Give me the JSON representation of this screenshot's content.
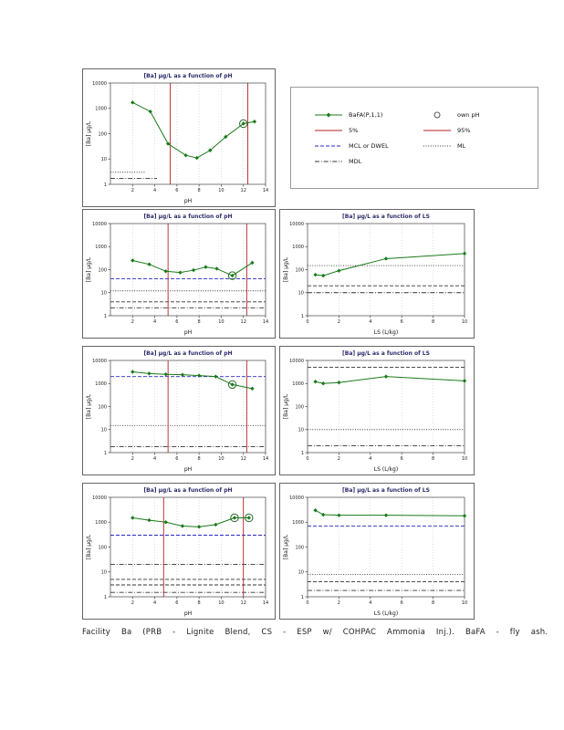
{
  "page": {
    "caption": "Facility Ba (PRB - Lignite Blend, CS - ESP w/ COHPAC Ammonia Inj.). BaFA - fly ash."
  },
  "colors": {
    "series_green": "#1a7a1a",
    "percentile_red": "#b22222",
    "mcl_blue": "#2929c8",
    "line_black": "#333333"
  },
  "legend": {
    "entries": [
      {
        "label": "BaFA(P,1,1)",
        "swatch": "line-marker",
        "color": "#1a7a1a",
        "dash": "solid"
      },
      {
        "label": "own pH",
        "swatch": "circle",
        "color": "#555555",
        "dash": "solid"
      },
      {
        "label": "5%",
        "swatch": "line",
        "color": "#b22222",
        "dash": "solid"
      },
      {
        "label": "95%",
        "swatch": "line",
        "color": "#b22222",
        "dash": "solid"
      },
      {
        "label": "MCL or DWEL",
        "swatch": "line",
        "color": "#2929c8",
        "dash": "dashed"
      },
      {
        "label": "ML",
        "swatch": "line",
        "color": "#333333",
        "dash": "dotted"
      },
      {
        "label": "MDL",
        "swatch": "line",
        "color": "#333333",
        "dash": "dashdot"
      }
    ]
  },
  "chart_data": [
    {
      "type": "line",
      "title": "[Ba] µg/L as a function of pH",
      "xlabel": "pH",
      "ylabel": "[Ba] µg/L",
      "xlim": [
        0,
        14
      ],
      "xticks": [
        2,
        4,
        6,
        8,
        10,
        12,
        14
      ],
      "ylog": true,
      "ylim": [
        1,
        10000
      ],
      "yticks": [
        1,
        10,
        100,
        1000,
        10000
      ],
      "grid": true,
      "legend_position": "none",
      "series": [
        {
          "name": "BaFA(P,1,1)",
          "x": [
            2,
            3.6,
            5.2,
            6.8,
            7.8,
            9,
            10.4,
            12,
            13
          ],
          "y": [
            1700,
            750,
            40,
            14,
            11,
            22,
            75,
            250,
            300
          ]
        }
      ],
      "circled": [
        7
      ],
      "vlines": [
        {
          "x": 5.4,
          "color": "#b22222"
        },
        {
          "x": 12.4,
          "color": "#b22222"
        }
      ],
      "hlines": [
        {
          "y": 3,
          "dash": "dotted",
          "color": "#333333",
          "x0": 0,
          "x1": 0.22
        },
        {
          "y": 1.7,
          "dash": "dashdot",
          "color": "#333333",
          "x0": 0,
          "x1": 0.3
        }
      ]
    },
    {
      "type": "line",
      "title": "[Ba] µg/L as a function of pH",
      "xlabel": "pH",
      "ylabel": "[Ba] µg/L",
      "xlim": [
        0,
        14
      ],
      "xticks": [
        2,
        4,
        6,
        8,
        10,
        12,
        14
      ],
      "ylog": true,
      "ylim": [
        1,
        10000
      ],
      "yticks": [
        1,
        10,
        100,
        1000,
        10000
      ],
      "grid": true,
      "legend_position": "none",
      "series": [
        {
          "name": "BaFA(P,1,1)",
          "x": [
            2,
            3.5,
            5,
            6.3,
            7.5,
            8.6,
            9.6,
            11,
            12.8
          ],
          "y": [
            250,
            170,
            85,
            75,
            95,
            130,
            110,
            55,
            200
          ]
        }
      ],
      "circled": [
        7
      ],
      "vlines": [
        {
          "x": 5.2,
          "color": "#b22222"
        },
        {
          "x": 12.3,
          "color": "#b22222"
        }
      ],
      "hlines": [
        {
          "y": 40,
          "dash": "dashed",
          "color": "#2929c8"
        },
        {
          "y": 12,
          "dash": "dotted",
          "color": "#333333"
        },
        {
          "y": 4,
          "dash": "dashed",
          "color": "#333333"
        },
        {
          "y": 2.2,
          "dash": "dashdot",
          "color": "#333333"
        }
      ]
    },
    {
      "type": "line",
      "title": "[Ba] µg/L as a function of LS",
      "xlabel": "LS (L/kg)",
      "ylabel": "[Ba] µg/L",
      "xlim": [
        0,
        10
      ],
      "xticks": [
        0,
        2,
        4,
        6,
        8,
        10
      ],
      "ylog": true,
      "ylim": [
        1,
        10000
      ],
      "yticks": [
        1,
        10,
        100,
        1000,
        10000
      ],
      "grid": true,
      "legend_position": "none",
      "series": [
        {
          "name": "BaFA(P,1,1)",
          "x": [
            0.5,
            1,
            2,
            5,
            10
          ],
          "y": [
            60,
            55,
            90,
            300,
            500
          ]
        }
      ],
      "circled": [],
      "vlines": [],
      "hlines": [
        {
          "y": 150,
          "dash": "dotted",
          "color": "#333333"
        },
        {
          "y": 20,
          "dash": "dashed",
          "color": "#333333"
        },
        {
          "y": 10,
          "dash": "dashdot",
          "color": "#333333"
        }
      ]
    },
    {
      "type": "line",
      "title": "[Ba] µg/L as a function of pH",
      "xlabel": "pH",
      "ylabel": "[Ba] µg/L",
      "xlim": [
        0,
        14
      ],
      "xticks": [
        2,
        4,
        6,
        8,
        10,
        12,
        14
      ],
      "ylog": true,
      "ylim": [
        1,
        10000
      ],
      "yticks": [
        1,
        10,
        100,
        1000,
        10000
      ],
      "grid": true,
      "legend_position": "none",
      "series": [
        {
          "name": "BaFA(P,1,1)",
          "x": [
            2,
            3.5,
            5,
            6.5,
            8,
            9.5,
            11,
            12.8
          ],
          "y": [
            3200,
            2700,
            2500,
            2400,
            2200,
            2000,
            900,
            600
          ]
        }
      ],
      "circled": [
        6
      ],
      "vlines": [
        {
          "x": 5.2,
          "color": "#b22222"
        },
        {
          "x": 12.3,
          "color": "#b22222"
        }
      ],
      "hlines": [
        {
          "y": 2000,
          "dash": "dashed",
          "color": "#2929c8"
        },
        {
          "y": 15,
          "dash": "dotted",
          "color": "#333333"
        },
        {
          "y": 1.8,
          "dash": "dashdot",
          "color": "#333333"
        }
      ]
    },
    {
      "type": "line",
      "title": "[Ba] µg/L as a function of LS",
      "xlabel": "LS (L/kg)",
      "ylabel": "[Ba] µg/L",
      "xlim": [
        0,
        10
      ],
      "xticks": [
        0,
        2,
        4,
        6,
        8,
        10
      ],
      "ylog": true,
      "ylim": [
        1,
        10000
      ],
      "yticks": [
        1,
        10,
        100,
        1000,
        10000
      ],
      "grid": true,
      "legend_position": "none",
      "series": [
        {
          "name": "BaFA(P,1,1)",
          "x": [
            0.5,
            1,
            2,
            5,
            10
          ],
          "y": [
            1200,
            1000,
            1100,
            2000,
            1300
          ]
        }
      ],
      "circled": [],
      "vlines": [],
      "hlines": [
        {
          "y": 5000,
          "dash": "dashed",
          "color": "#333333"
        },
        {
          "y": 10,
          "dash": "dotted",
          "color": "#333333"
        },
        {
          "y": 2,
          "dash": "dashdot",
          "color": "#333333"
        }
      ]
    },
    {
      "type": "line",
      "title": "[Ba] µg/L as a function of pH",
      "xlabel": "pH",
      "ylabel": "[Ba] µg/L",
      "xlim": [
        0,
        14
      ],
      "xticks": [
        2,
        4,
        6,
        8,
        10,
        12,
        14
      ],
      "ylog": true,
      "ylim": [
        1,
        10000
      ],
      "yticks": [
        1,
        10,
        100,
        1000,
        10000
      ],
      "grid": true,
      "legend_position": "none",
      "series": [
        {
          "name": "BaFA(P,1,1)",
          "x": [
            2,
            3.5,
            5,
            6.5,
            8,
            9.5,
            11.2,
            12.5
          ],
          "y": [
            1500,
            1200,
            1000,
            700,
            650,
            800,
            1500,
            1500
          ]
        }
      ],
      "circled": [
        6,
        7
      ],
      "vlines": [
        {
          "x": 4.8,
          "color": "#b22222"
        },
        {
          "x": 12.0,
          "color": "#b22222"
        }
      ],
      "hlines": [
        {
          "y": 300,
          "dash": "dashed",
          "color": "#2929c8"
        },
        {
          "y": 20,
          "dash": "dashdot",
          "color": "#333333"
        },
        {
          "y": 5,
          "dash": "dashed",
          "color": "#333333"
        },
        {
          "y": 3,
          "dash": "dashed",
          "color": "#333333"
        },
        {
          "y": 1.5,
          "dash": "dashdot",
          "color": "#333333"
        }
      ]
    },
    {
      "type": "line",
      "title": "[Ba] µg/L as a function of LS",
      "xlabel": "LS (L/kg)",
      "ylabel": "[Ba] µg/L",
      "xlim": [
        0,
        10
      ],
      "xticks": [
        0,
        2,
        4,
        6,
        8,
        10
      ],
      "ylog": true,
      "ylim": [
        1,
        10000
      ],
      "yticks": [
        1,
        10,
        100,
        1000,
        10000
      ],
      "grid": true,
      "legend_position": "none",
      "series": [
        {
          "name": "BaFA(P,1,1)",
          "x": [
            0.5,
            1,
            2,
            5,
            10
          ],
          "y": [
            3000,
            2000,
            1900,
            1900,
            1800
          ]
        }
      ],
      "circled": [],
      "vlines": [],
      "hlines": [
        {
          "y": 700,
          "dash": "dashed",
          "color": "#2929c8"
        },
        {
          "y": 8,
          "dash": "dotted",
          "color": "#333333"
        },
        {
          "y": 4,
          "dash": "dashed",
          "color": "#333333"
        },
        {
          "y": 1.8,
          "dash": "dashdot",
          "color": "#333333"
        }
      ]
    }
  ]
}
